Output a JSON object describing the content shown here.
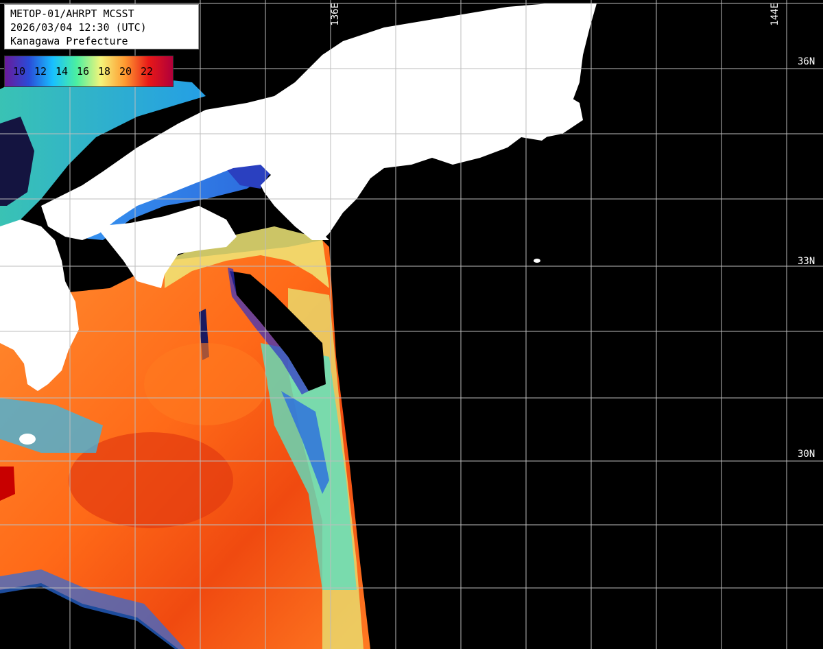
{
  "header": {
    "line1": "METOP-01/AHRPT MCSST",
    "line2": "2026/03/04 12:30 (UTC)",
    "line3": "Kanagawa Prefecture"
  },
  "legend": {
    "ticks": [
      "10",
      "12",
      "14",
      "16",
      "18",
      "20",
      "22"
    ],
    "colors": [
      "#6a1a9a",
      "#2a4bd8",
      "#18c0ff",
      "#4cf0a0",
      "#f4f47a",
      "#ff9a30",
      "#e81818",
      "#b0003a"
    ]
  },
  "graticule": {
    "lat_labels": [
      "36N",
      "33N",
      "30N"
    ],
    "lon_labels": [
      "136E",
      "144E"
    ]
  },
  "colors": {
    "land": "#ffffff",
    "no_data": "#000000",
    "grid": "#bdbdbd"
  }
}
